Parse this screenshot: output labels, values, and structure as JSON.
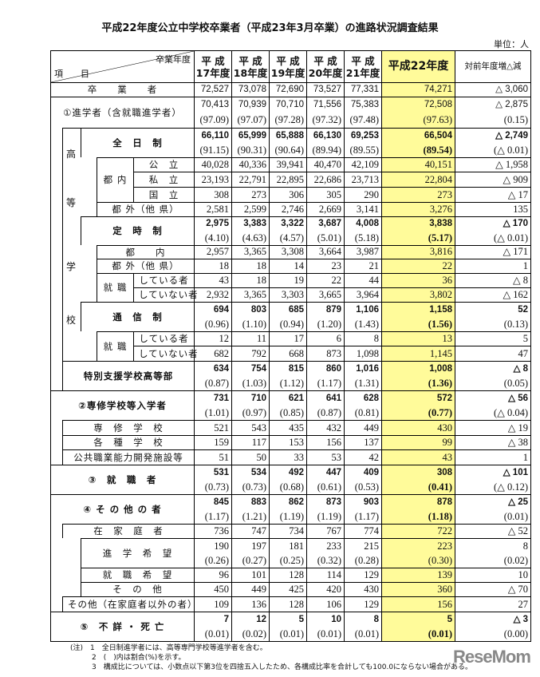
{
  "title": "平成22年度公立中学校卒業者（平成23年3月卒業）の進路状況調査結果",
  "unit": "単位：人",
  "header": {
    "col_label_top": "卒業年度",
    "col_label_bottom": "項　　目",
    "years": [
      [
        "平 成",
        "17年度"
      ],
      [
        "平 成",
        "18年度"
      ],
      [
        "平 成",
        "19年度"
      ],
      [
        "平 成",
        "20年度"
      ],
      [
        "平 成",
        "21年度"
      ]
    ],
    "current": "平成22年度",
    "delta": "対前年度増△減"
  },
  "groups": {
    "high_school": [
      "高",
      "等",
      "学",
      "校"
    ],
    "tonai": "都 内",
    "shushoku": "就 職"
  },
  "rows": [
    {
      "label": "卒　　業　　者",
      "style": "s",
      "v": [
        "72,527",
        "73,078",
        "72,690",
        "73,527",
        "77,331"
      ],
      "h22": "74,271",
      "d": "△ 3,060"
    },
    {
      "label": "①進学者（含就職進学者）",
      "style": "s",
      "v": [
        "70,413",
        "70,939",
        "70,710",
        "71,556",
        "75,383"
      ],
      "h22": "72,508",
      "d": "△ 2,875",
      "p": [
        "(97.09)",
        "(97.07)",
        "(97.28)",
        "(97.32)",
        "(97.48)"
      ],
      "ph": "(97.63)",
      "pd": "(0.15)"
    },
    {
      "label": "全　日　制",
      "style": "b",
      "v": [
        "66,110",
        "65,999",
        "65,888",
        "66,130",
        "69,253"
      ],
      "h22": "66,504",
      "d": "△ 2,749",
      "p": [
        "(91.15)",
        "(90.31)",
        "(90.64)",
        "(89.94)",
        "(89.55)"
      ],
      "ph": "(89.54)",
      "pd": "(△ 0.01)"
    },
    {
      "label": "公　立",
      "v": [
        "40,028",
        "40,336",
        "39,941",
        "40,470",
        "42,109"
      ],
      "h22": "40,151",
      "d": "△ 1,958"
    },
    {
      "label": "私　立",
      "v": [
        "23,193",
        "22,791",
        "22,895",
        "22,686",
        "23,713"
      ],
      "h22": "22,804",
      "d": "△ 909"
    },
    {
      "label": "国　立",
      "v": [
        "308",
        "273",
        "306",
        "305",
        "290"
      ],
      "h22": "273",
      "d": "△ 17"
    },
    {
      "label": "都 外（他 県）",
      "v": [
        "2,581",
        "2,599",
        "2,746",
        "2,669",
        "3,141"
      ],
      "h22": "3,276",
      "d": "135"
    },
    {
      "label": "定　時　制",
      "style": "b",
      "v": [
        "2,975",
        "3,383",
        "3,322",
        "3,687",
        "4,008"
      ],
      "h22": "3,838",
      "d": "△ 170",
      "p": [
        "(4.10)",
        "(4.63)",
        "(4.57)",
        "(5.01)",
        "(5.18)"
      ],
      "ph": "(5.17)",
      "pd": "(△ 0.01)"
    },
    {
      "label": "都　　内",
      "v": [
        "2,957",
        "3,365",
        "3,308",
        "3,664",
        "3,987"
      ],
      "h22": "3,816",
      "d": "△ 171"
    },
    {
      "label": "都 外（他 県）",
      "v": [
        "18",
        "18",
        "14",
        "23",
        "21"
      ],
      "h22": "22",
      "d": "1"
    },
    {
      "label": "している者",
      "v": [
        "43",
        "18",
        "19",
        "22",
        "44"
      ],
      "h22": "36",
      "d": "△ 8"
    },
    {
      "label": "していない者",
      "v": [
        "2,932",
        "3,365",
        "3,303",
        "3,665",
        "3,964"
      ],
      "h22": "3,802",
      "d": "△ 162"
    },
    {
      "label": "通　信　制",
      "style": "b",
      "v": [
        "694",
        "803",
        "685",
        "879",
        "1,106"
      ],
      "h22": "1,158",
      "d": "52",
      "p": [
        "(0.96)",
        "(1.10)",
        "(0.94)",
        "(1.20)",
        "(1.43)"
      ],
      "ph": "(1.56)",
      "pd": "(0.13)"
    },
    {
      "label": "している者",
      "v": [
        "12",
        "11",
        "17",
        "6",
        "8"
      ],
      "h22": "13",
      "d": "5"
    },
    {
      "label": "していない者",
      "v": [
        "682",
        "792",
        "668",
        "873",
        "1,098"
      ],
      "h22": "1,145",
      "d": "47"
    },
    {
      "label": "特別支援学校高等部",
      "style": "b",
      "v": [
        "634",
        "754",
        "815",
        "860",
        "1,016"
      ],
      "h22": "1,008",
      "d": "△ 8",
      "p": [
        "(0.87)",
        "(1.03)",
        "(1.12)",
        "(1.17)",
        "(1.31)"
      ],
      "ph": "(1.36)",
      "pd": "(0.05)"
    },
    {
      "label": "②専修学校等入学者",
      "style": "b",
      "v": [
        "731",
        "710",
        "621",
        "641",
        "628"
      ],
      "h22": "572",
      "d": "△ 56",
      "p": [
        "(1.01)",
        "(0.97)",
        "(0.85)",
        "(0.87)",
        "(0.81)"
      ],
      "ph": "(0.77)",
      "pd": "(△ 0.04)"
    },
    {
      "label": "専　修　学　校",
      "v": [
        "521",
        "543",
        "435",
        "432",
        "449"
      ],
      "h22": "430",
      "d": "△ 19"
    },
    {
      "label": "各　種　学　校",
      "v": [
        "159",
        "117",
        "153",
        "156",
        "137"
      ],
      "h22": "99",
      "d": "△ 38"
    },
    {
      "label": "公共職業能力開発施設等",
      "v": [
        "51",
        "50",
        "33",
        "53",
        "42"
      ],
      "h22": "43",
      "d": "1"
    },
    {
      "label": "③　就　職　者",
      "style": "b",
      "v": [
        "531",
        "534",
        "492",
        "447",
        "409"
      ],
      "h22": "308",
      "d": "△ 101",
      "p": [
        "(0.73)",
        "(0.73)",
        "(0.68)",
        "(0.61)",
        "(0.53)"
      ],
      "ph": "(0.41)",
      "pd": "(△ 0.12)"
    },
    {
      "label": "④ そ の 他 の 者",
      "style": "b",
      "v": [
        "845",
        "883",
        "862",
        "873",
        "903"
      ],
      "h22": "878",
      "d": "△ 25",
      "p": [
        "(1.17)",
        "(1.21)",
        "(1.19)",
        "(1.19)",
        "(1.17)"
      ],
      "ph": "(1.18)",
      "pd": "(0.01)"
    },
    {
      "label": "在　家　庭　者",
      "v": [
        "736",
        "747",
        "734",
        "767",
        "774"
      ],
      "h22": "722",
      "d": "△ 52"
    },
    {
      "label": "進　学　希　望",
      "v": [
        "190",
        "197",
        "181",
        "233",
        "215"
      ],
      "h22": "223",
      "d": "8",
      "p": [
        "(0.26)",
        "(0.27)",
        "(0.25)",
        "(0.32)",
        "(0.28)"
      ],
      "ph": "(0.30)",
      "pd": "(0.02)"
    },
    {
      "label": "就　職　希　望",
      "v": [
        "96",
        "101",
        "128",
        "114",
        "129"
      ],
      "h22": "139",
      "d": "10"
    },
    {
      "label": "そ　の　他",
      "v": [
        "450",
        "449",
        "425",
        "420",
        "430"
      ],
      "h22": "360",
      "d": "△ 70"
    },
    {
      "label": "その他（在家庭者以外の者）",
      "v": [
        "109",
        "136",
        "128",
        "106",
        "129"
      ],
      "h22": "156",
      "d": "27"
    },
    {
      "label": "⑤　不 詳 ・ 死 亡",
      "style": "b",
      "v": [
        "7",
        "12",
        "5",
        "10",
        "8"
      ],
      "h22": "5",
      "d": "△ 3",
      "p": [
        "(0.01)",
        "(0.02)",
        "(0.01)",
        "(0.01)",
        "(0.01)"
      ],
      "ph": "(0.01)",
      "pd": "(0.00)"
    }
  ],
  "notes": [
    "(注)　1　全日制進学者には、高等専門学校等進学者を含む。",
    "　　　2　(　)内は割合(%)を示す。",
    "　　　3　構成比については、小数点以下第3位を四捨五入したため、各構成比率を合計しても100.0にならない場合がある。"
  ],
  "logo": "ReseMom",
  "colors": {
    "highlight": "#fffb9a"
  }
}
